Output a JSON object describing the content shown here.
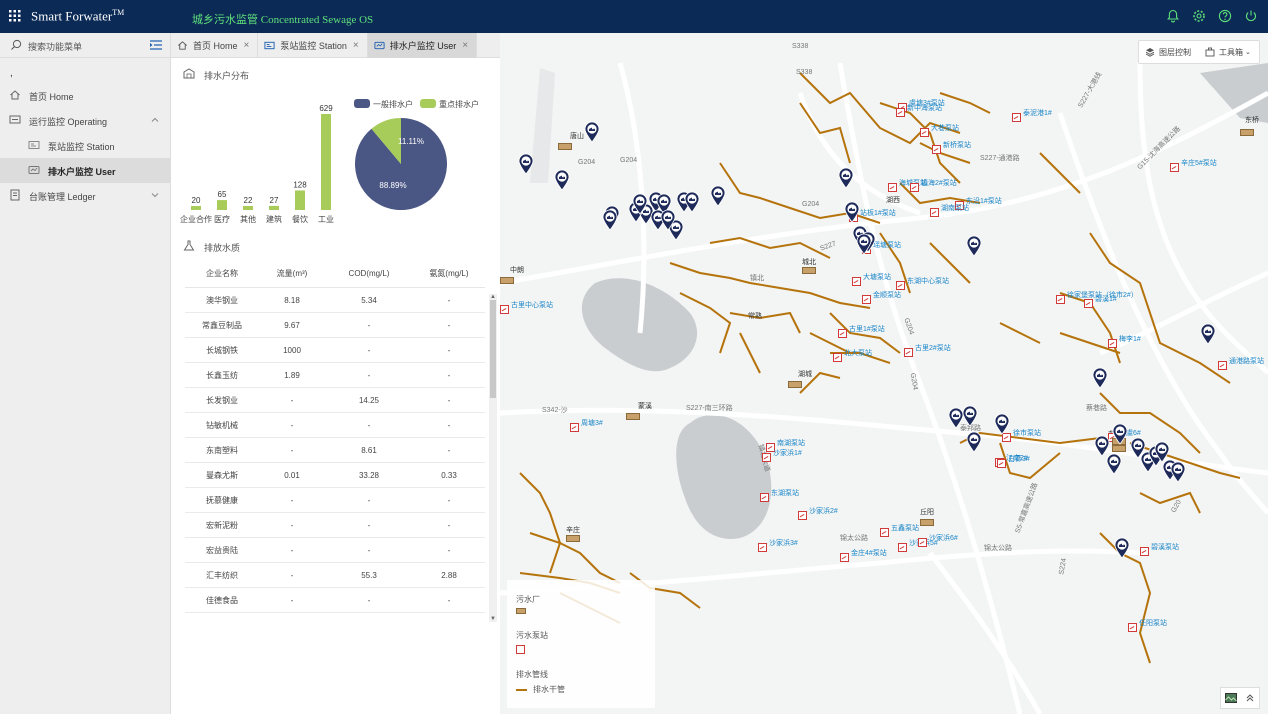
{
  "app": {
    "brand": "Smart Forwater",
    "brand_tm": "TM",
    "subtitle": "城乡污水监管 Concentrated Sewage OS"
  },
  "header_icons": [
    "bell-icon",
    "gear-icon",
    "help-icon",
    "power-icon"
  ],
  "sidebar": {
    "search_label": "搜索功能菜单",
    "dot": ",",
    "items": [
      {
        "label": "首页 Home",
        "icon": "home-icon"
      },
      {
        "label": "运行监控 Operating",
        "icon": "monitor-icon"
      },
      {
        "label": "泵站监控 Station",
        "icon": "station-icon"
      },
      {
        "label": "排水户监控 User",
        "icon": "user-monitor-icon"
      },
      {
        "label": "台账管理 Ledger",
        "icon": "ledger-icon"
      }
    ]
  },
  "tabs": [
    {
      "label": "首页 Home",
      "icon": "home-icon"
    },
    {
      "label": "泵站监控 Station",
      "icon": "station-icon"
    },
    {
      "label": "排水户监控 User",
      "icon": "user-monitor-icon"
    }
  ],
  "section1": {
    "title": "排水户分布"
  },
  "section2": {
    "title": "排放水质"
  },
  "chart_data": [
    {
      "type": "bar",
      "categories": [
        "企业合作",
        "医疗",
        "其他",
        "建筑",
        "餐饮",
        "工业"
      ],
      "tick_labels": [
        "企业合作",
        "医疗",
        "其他",
        "建筑",
        "餐饮",
        "工业"
      ],
      "values": [
        20,
        65,
        22,
        27,
        128,
        629
      ],
      "color": "#a8cc5a"
    },
    {
      "type": "pie",
      "labels": [
        "一般排水户",
        "重点排水户"
      ],
      "values": [
        88.89,
        11.11
      ],
      "value_labels": [
        "88.89%",
        "11.11%"
      ],
      "colors": [
        "#4a5684",
        "#a8cc5a"
      ],
      "legend": "top"
    }
  ],
  "table": {
    "headers": [
      "企业名称",
      "流量(m³)",
      "COD(mg/L)",
      "氨氮(mg/L)"
    ],
    "rows": [
      [
        "澳华钢业",
        "8.18",
        "5.34",
        "-"
      ],
      [
        "常鑫豆制品",
        "9.67",
        "-",
        "-"
      ],
      [
        "长城钢铁",
        "1000",
        "-",
        "-"
      ],
      [
        "长鑫玉纺",
        "1.89",
        "-",
        "-"
      ],
      [
        "长发钢业",
        "-",
        "14.25",
        "-"
      ],
      [
        "钻敏机械",
        "-",
        "-",
        "-"
      ],
      [
        "东南塑料",
        "-",
        "8.61",
        "-"
      ],
      [
        "曼森尤斯",
        "0.01",
        "33.28",
        "0.33"
      ],
      [
        "抚慕健康",
        "-",
        "-",
        "-"
      ],
      [
        "宏新泥粉",
        "-",
        "-",
        "-"
      ],
      [
        "宏益贵陆",
        "-",
        "-",
        "-"
      ],
      [
        "汇丰纺织",
        "-",
        "55.3",
        "2.88"
      ],
      [
        "佳德食品",
        "-",
        "-",
        "-"
      ]
    ]
  },
  "map": {
    "toolbar": [
      {
        "label": "图层控制",
        "icon": "layers-icon"
      },
      {
        "label": "工具箱",
        "icon": "toolbox-icon"
      }
    ],
    "legend": {
      "plant": "污水厂",
      "station": "污水泵站",
      "pipe": "排水管线",
      "pipe_main": "排水干管"
    },
    "road_labels": [
      "S338",
      "S227-大港线",
      "G15-沈海高速公路",
      "G204",
      "G204",
      "S227-南三环路",
      "S342-沙",
      "S227",
      "G204",
      "G204",
      "S227-通港路",
      "S5-常嘉高速公路",
      "S224",
      "锦太公路",
      "锦太公路",
      "G20",
      "G204",
      "镇北大道",
      "S338",
      "镇北",
      "泰邦路",
      "蔡巷路"
    ],
    "places": [
      "唐山",
      "中朗",
      "蒙溪",
      "辛庄",
      "城北",
      "湖城",
      "湖西",
      "常熟",
      "丘阳",
      "东桥",
      "东桥"
    ],
    "stations": [
      "虞塘3#泵站",
      "大巷泵站",
      "新桥泵站",
      "东沿1#泵站",
      "海城泵站",
      "镇海2#泵站",
      "瑶塘泵站",
      "站板1#泵站",
      "湖南泵站",
      "新中海泵站",
      "东湖中心泵站",
      "大塘泵站",
      "金顺泵站",
      "古里1#泵站",
      "古里2#泵站",
      "北大泵站",
      "南湖泵站",
      "沙家浜1#",
      "沙家浜2#",
      "沙家浜3#",
      "金庄4#泵站",
      "五鑫泵站",
      "沙家浜5#",
      "沙家浜6#",
      "东湖泵站",
      "徐市泵站",
      "江南2#",
      "白茆3#",
      "碧溪泵站",
      "任阳泵站",
      "通港路泵站",
      "梅李1#",
      "碧溪1#",
      "徐家堡泵站（徐市2#）",
      "泰泥港1#",
      "周塘3#",
      "古里中心泵站",
      "海虞6#",
      "辛庄5#泵站"
    ]
  }
}
